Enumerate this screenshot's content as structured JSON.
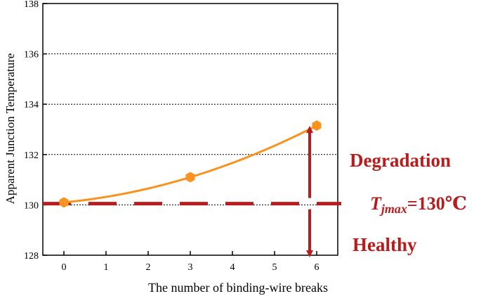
{
  "chart_data": {
    "type": "line",
    "xlabel": "The number of binding-wire breaks",
    "ylabel": "Apparent Junction Temperature",
    "x_ticks": [
      0,
      1,
      2,
      3,
      4,
      5,
      6
    ],
    "y_ticks": [
      128,
      130,
      132,
      134,
      136,
      138
    ],
    "xlim": [
      -0.5,
      6.5
    ],
    "ylim": [
      128,
      138
    ],
    "grid": "horizontal dotted",
    "series": [
      {
        "color": "#f7931e",
        "points": [
          {
            "x": 0,
            "y": 130.1
          },
          {
            "x": 3,
            "y": 131.1
          },
          {
            "x": 6,
            "y": 133.15
          }
        ],
        "fit_curve": true
      }
    ],
    "threshold": {
      "y": 130.05,
      "color": "#b81c1c",
      "style": "dashed"
    },
    "annotations": {
      "degradation": "Degradation",
      "healthy": "Healthy",
      "tjmax_symbol": "T",
      "tjmax_subscript": "jmax",
      "tjmax_value": "=130℃",
      "annotation_color": "#b81c1c"
    }
  }
}
